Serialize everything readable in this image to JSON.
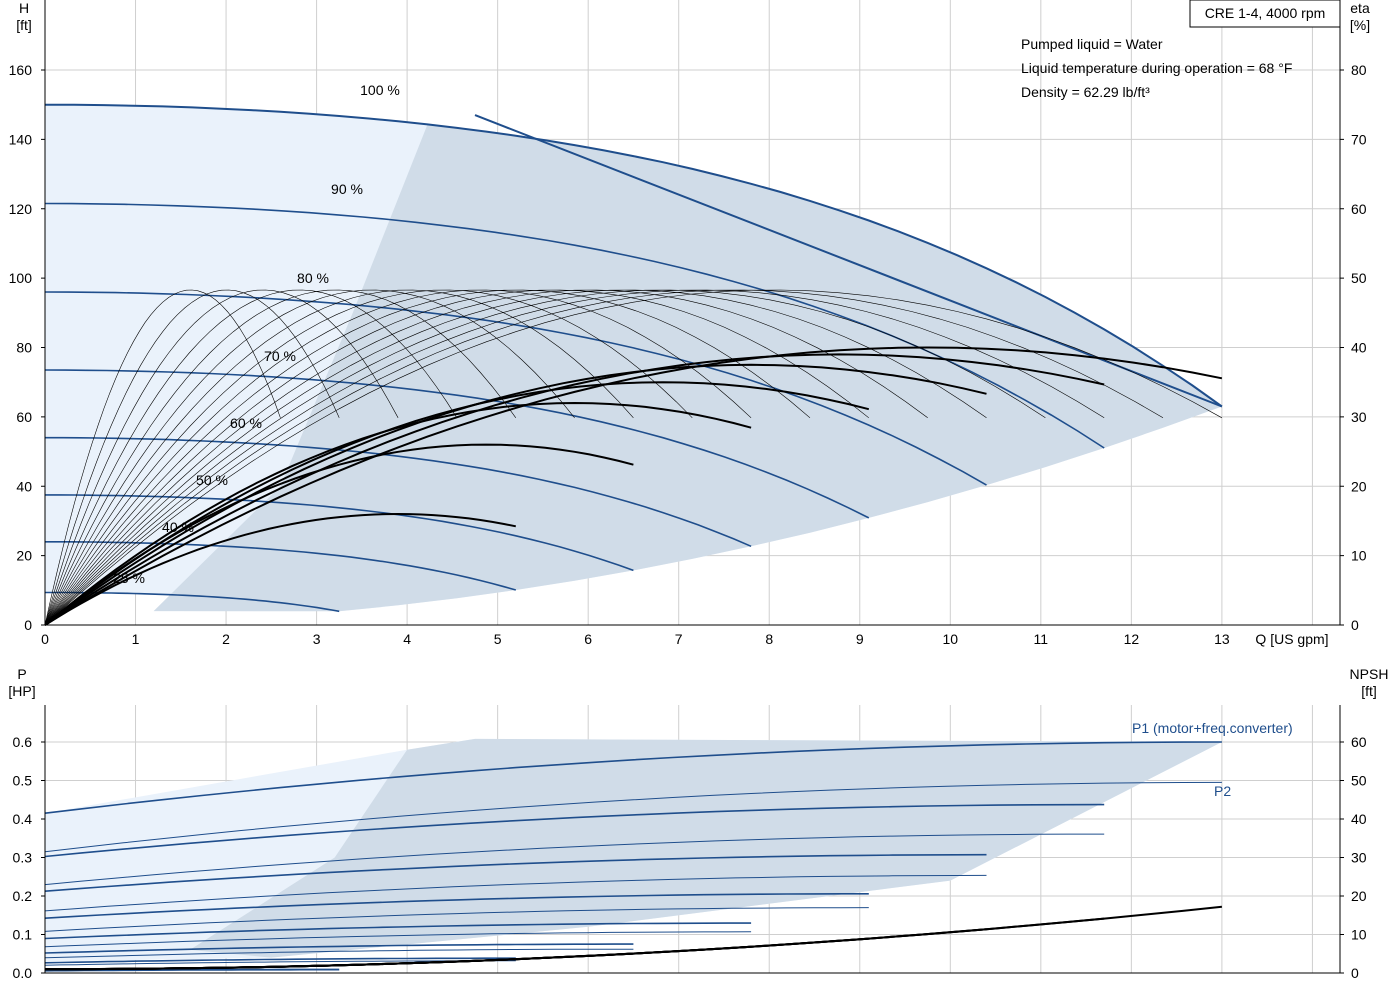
{
  "chart_data": [
    {
      "type": "line",
      "title": "CRE 1-4, 4000 rpm",
      "info": [
        "Pumped liquid = Water",
        "Liquid temperature during operation = 68 °F",
        "Density = 62.29 lb/ft³"
      ],
      "xlabel": "Q [US gpm]",
      "ylabel_left": [
        "H",
        "[ft]"
      ],
      "ylabel_right": [
        "eta",
        "[%]"
      ],
      "xlim": [
        0,
        14
      ],
      "ylim_left": [
        0,
        170
      ],
      "ylim_right": [
        0,
        85
      ],
      "xticks": [
        "0",
        "1",
        "2",
        "3",
        "4",
        "5",
        "6",
        "7",
        "8",
        "9",
        "10",
        "11",
        "12",
        "13"
      ],
      "yticks_left": [
        "0",
        "20",
        "40",
        "60",
        "80",
        "100",
        "120",
        "140",
        "160"
      ],
      "yticks_right": [
        "0",
        "10",
        "20",
        "30",
        "40",
        "50",
        "60",
        "70",
        "80"
      ],
      "grid": true,
      "speeds": [
        {
          "label": "100 %",
          "max_q": 13.0
        },
        {
          "label": "90 %",
          "max_q": 11.65
        },
        {
          "label": "80 %",
          "max_q": 10.2
        },
        {
          "label": "70 %",
          "max_q": 8.75
        },
        {
          "label": "60 %",
          "max_q": 7.3
        },
        {
          "label": "50 %",
          "max_q": 5.85
        },
        {
          "label": "25 %",
          "max_q": 3.65
        }
      ],
      "head_shutoff_100": 150,
      "eta_peak": 48.3,
      "eta_bep_q_100": 9.8,
      "p2_label": "P2"
    },
    {
      "type": "line",
      "xlabel": "",
      "ylabel_left": [
        "P",
        "[HP]"
      ],
      "ylabel_right": [
        "NPSH",
        "[ft]"
      ],
      "ylim_left": [
        0,
        0.7
      ],
      "ylim_right": [
        0,
        70
      ],
      "yticks_left": [
        "0.0",
        "0.1",
        "0.2",
        "0.3",
        "0.4",
        "0.5",
        "0.6"
      ],
      "yticks_right": [
        "0",
        "10",
        "20",
        "30",
        "40",
        "50",
        "60"
      ],
      "p1_label": "P1 (motor+freq.converter)",
      "p2_label": "P2",
      "p1_100": [
        0.415,
        0.608,
        0.6
      ],
      "p2_100": [
        0.315,
        0.495,
        0.495
      ],
      "npsh_100_end": 16.2
    }
  ]
}
